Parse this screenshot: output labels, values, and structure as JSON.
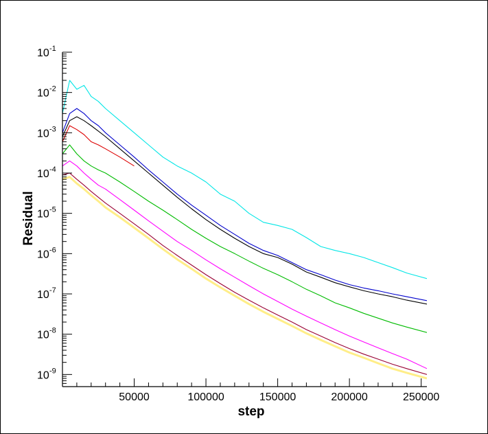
{
  "chart_data": {
    "type": "line",
    "xlabel": "step",
    "ylabel": "Residual",
    "x_scale": "linear",
    "y_scale": "log",
    "xlim": [
      0,
      254000
    ],
    "ylim": [
      5e-10,
      0.1
    ],
    "grid": false,
    "x_ticks": [
      {
        "value": 50000,
        "label": "50000"
      },
      {
        "value": 100000,
        "label": "100000"
      },
      {
        "value": 150000,
        "label": "150000"
      },
      {
        "value": 200000,
        "label": "200000"
      },
      {
        "value": 250000,
        "label": "250000"
      }
    ],
    "y_ticks": [
      {
        "value": 0.1,
        "base": "10",
        "exp": "-1"
      },
      {
        "value": 0.01,
        "base": "10",
        "exp": "-2"
      },
      {
        "value": 0.001,
        "base": "10",
        "exp": "-3"
      },
      {
        "value": 0.0001,
        "base": "10",
        "exp": "-4"
      },
      {
        "value": 1e-05,
        "base": "10",
        "exp": "-5"
      },
      {
        "value": 1e-06,
        "base": "10",
        "exp": "-6"
      },
      {
        "value": 1e-07,
        "base": "10",
        "exp": "-7"
      },
      {
        "value": 1e-08,
        "base": "10",
        "exp": "-8"
      },
      {
        "value": 1e-09,
        "base": "10",
        "exp": "-9"
      }
    ],
    "series": [
      {
        "color": "#00e6e6",
        "x": [
          0,
          5000,
          10000,
          15000,
          20000,
          25000,
          30000,
          40000,
          50000,
          60000,
          70000,
          80000,
          90000,
          100000,
          110000,
          120000,
          130000,
          140000,
          150000,
          160000,
          170000,
          180000,
          190000,
          200000,
          210000,
          220000,
          230000,
          240000,
          254000
        ],
        "y": [
          0.003,
          0.02,
          0.012,
          0.015,
          0.008,
          0.006,
          0.004,
          0.002,
          0.001,
          0.0005,
          0.00025,
          0.00015,
          0.0001,
          6e-05,
          3e-05,
          2e-05,
          1e-05,
          6e-06,
          5e-06,
          4e-06,
          2.5e-06,
          1.5e-06,
          1.2e-06,
          1e-06,
          8e-07,
          6e-07,
          4.5e-07,
          3.3e-07,
          2.4e-07
        ]
      },
      {
        "color": "#0000cc",
        "x": [
          0,
          5000,
          10000,
          15000,
          20000,
          25000,
          30000,
          40000,
          50000,
          60000,
          70000,
          80000,
          90000,
          100000,
          110000,
          120000,
          130000,
          140000,
          150000,
          160000,
          170000,
          180000,
          190000,
          200000,
          210000,
          220000,
          230000,
          240000,
          254000
        ],
        "y": [
          0.001,
          0.003,
          0.004,
          0.003,
          0.002,
          0.0015,
          0.001,
          0.0005,
          0.00025,
          0.00012,
          6e-05,
          3e-05,
          1.6e-05,
          9e-06,
          5e-06,
          3e-06,
          1.8e-06,
          1.2e-06,
          9e-07,
          6e-07,
          4e-07,
          3e-07,
          2.2e-07,
          1.7e-07,
          1.4e-07,
          1.2e-07,
          1e-07,
          8.5e-08,
          6.8e-08
        ]
      },
      {
        "color": "#000000",
        "x": [
          0,
          5000,
          10000,
          15000,
          20000,
          25000,
          30000,
          40000,
          50000,
          60000,
          70000,
          80000,
          90000,
          100000,
          110000,
          120000,
          130000,
          140000,
          150000,
          160000,
          170000,
          180000,
          190000,
          200000,
          210000,
          220000,
          230000,
          240000,
          254000
        ],
        "y": [
          0.0008,
          0.002,
          0.0025,
          0.002,
          0.0015,
          0.0011,
          0.0008,
          0.0004,
          0.0002,
          0.0001,
          5e-05,
          2.5e-05,
          1.3e-05,
          7e-06,
          4e-06,
          2.4e-06,
          1.5e-06,
          1e-06,
          8e-07,
          5.5e-07,
          3.5e-07,
          2.6e-07,
          1.9e-07,
          1.5e-07,
          1.2e-07,
          1e-07,
          8.5e-08,
          7e-08,
          5.6e-08
        ]
      },
      {
        "color": "#dd0000",
        "x": [
          0,
          5000,
          10000,
          15000,
          20000,
          25000,
          30000,
          40000,
          50000
        ],
        "y": [
          0.0006,
          0.0015,
          0.0012,
          0.0009,
          0.0006,
          0.0005,
          0.0004,
          0.00025,
          0.00015
        ]
      },
      {
        "color": "#00bb00",
        "x": [
          0,
          5000,
          10000,
          15000,
          20000,
          25000,
          30000,
          40000,
          50000,
          60000,
          70000,
          80000,
          90000,
          100000,
          110000,
          120000,
          130000,
          140000,
          150000,
          160000,
          170000,
          180000,
          190000,
          200000,
          210000,
          220000,
          230000,
          240000,
          254000
        ],
        "y": [
          0.0003,
          0.0005,
          0.0003,
          0.0002,
          0.00015,
          0.00012,
          0.0001,
          6e-05,
          3.5e-05,
          2e-05,
          1.2e-05,
          7e-06,
          4e-06,
          2.4e-06,
          1.5e-06,
          1e-06,
          6.5e-07,
          4.3e-07,
          3e-07,
          2e-07,
          1.3e-07,
          9e-08,
          6e-08,
          4.5e-08,
          3.3e-08,
          2.5e-08,
          1.9e-08,
          1.5e-08,
          1.1e-08
        ]
      },
      {
        "color": "#ff00ff",
        "x": [
          0,
          5000,
          10000,
          15000,
          20000,
          25000,
          30000,
          40000,
          50000,
          60000,
          70000,
          80000,
          90000,
          100000,
          110000,
          120000,
          130000,
          140000,
          150000,
          160000,
          170000,
          180000,
          190000,
          200000,
          210000,
          220000,
          230000,
          240000,
          254000
        ],
        "y": [
          0.00015,
          0.0002,
          0.00015,
          0.0001,
          7e-05,
          5e-05,
          4e-05,
          2.2e-05,
          1.2e-05,
          6.5e-06,
          3.6e-06,
          2e-06,
          1.2e-06,
          7e-07,
          4.2e-07,
          2.6e-07,
          1.6e-07,
          1e-07,
          6.5e-08,
          4.2e-08,
          2.8e-08,
          1.9e-08,
          1.3e-08,
          9e-09,
          6.4e-09,
          4.6e-09,
          3.3e-09,
          2.4e-09,
          1.4e-09
        ]
      },
      {
        "color": "#990033",
        "x": [
          0,
          5000,
          10000,
          15000,
          20000,
          25000,
          30000,
          40000,
          50000,
          60000,
          70000,
          80000,
          90000,
          100000,
          110000,
          120000,
          130000,
          140000,
          150000,
          160000,
          170000,
          180000,
          190000,
          200000,
          210000,
          220000,
          230000,
          240000,
          254000
        ],
        "y": [
          9e-05,
          0.0001,
          7e-05,
          5e-05,
          3.5e-05,
          2.5e-05,
          1.8e-05,
          1e-05,
          5.5e-06,
          3e-06,
          1.6e-06,
          9e-07,
          5.2e-07,
          3e-07,
          1.8e-07,
          1.1e-07,
          7e-08,
          4.5e-08,
          3e-08,
          2e-08,
          1.3e-08,
          9e-09,
          6.2e-09,
          4.4e-09,
          3.2e-09,
          2.4e-09,
          1.8e-09,
          1.4e-09,
          1e-09
        ]
      },
      {
        "color": "#ffee88",
        "x": [
          0,
          5000,
          10000,
          15000,
          20000,
          25000,
          30000,
          40000,
          50000,
          60000,
          70000,
          80000,
          90000,
          100000,
          110000,
          120000,
          130000,
          140000,
          150000,
          160000,
          170000,
          180000,
          190000,
          200000,
          210000,
          220000,
          230000,
          240000,
          254000
        ],
        "y": [
          7e-05,
          8e-05,
          5.5e-05,
          4e-05,
          2.8e-05,
          2e-05,
          1.4e-05,
          8e-06,
          4.4e-06,
          2.4e-06,
          1.3e-06,
          7.2e-07,
          4.2e-07,
          2.4e-07,
          1.45e-07,
          9e-08,
          5.6e-08,
          3.6e-08,
          2.4e-08,
          1.6e-08,
          1.05e-08,
          7.2e-09,
          5e-09,
          3.5e-09,
          2.6e-09,
          1.9e-09,
          1.4e-09,
          1.1e-09,
          8e-10
        ]
      }
    ]
  }
}
